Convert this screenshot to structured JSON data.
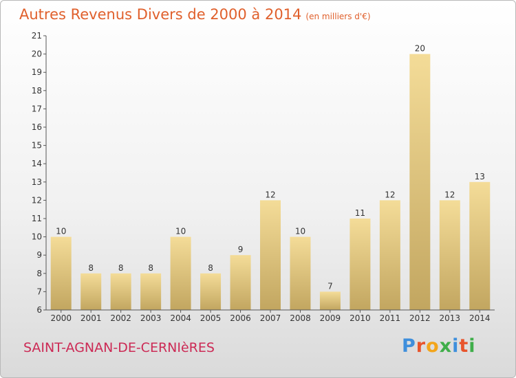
{
  "header": {
    "title": "Autres Revenus Divers de 2000 à 2014",
    "unit": "(en milliers d'€)"
  },
  "footer": {
    "city": "SAINT-AGNAN-DE-CERNIèRES",
    "logo": "Proxiti"
  },
  "colors": {
    "title": "#e0602c",
    "city": "#cc2a55",
    "bar_light": "#f4dc98",
    "bar_dark": "#c2a660",
    "logo_letters": [
      "#3f8fdc",
      "#e8542c",
      "#f3a51b",
      "#3fae4a",
      "#3f8fdc",
      "#e8542c",
      "#3fae4a"
    ]
  },
  "chart_data": {
    "type": "bar",
    "categories": [
      "2000",
      "2001",
      "2002",
      "2003",
      "2004",
      "2005",
      "2006",
      "2007",
      "2008",
      "2009",
      "2010",
      "2011",
      "2012",
      "2013",
      "2014"
    ],
    "values": [
      10,
      8,
      8,
      8,
      10,
      8,
      9,
      12,
      10,
      7,
      11,
      12,
      20,
      12,
      13
    ],
    "ylim": [
      6,
      21
    ],
    "yticks": [
      6,
      7,
      8,
      9,
      10,
      11,
      12,
      13,
      14,
      15,
      16,
      17,
      18,
      19,
      20,
      21
    ],
    "grid": false
  }
}
